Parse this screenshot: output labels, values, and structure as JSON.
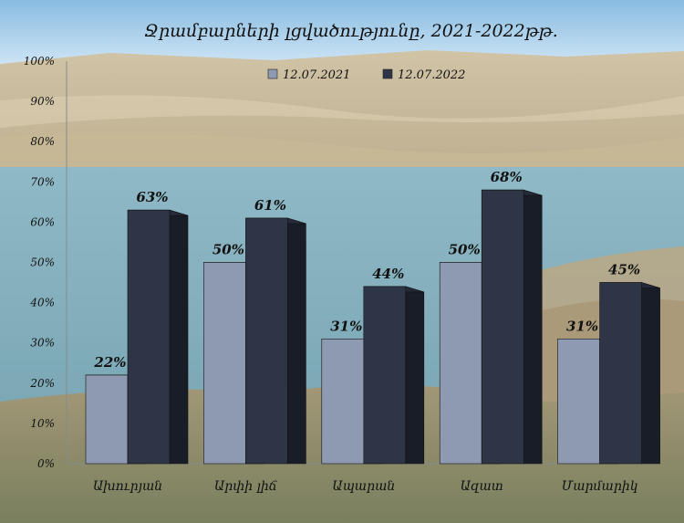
{
  "chart_data": {
    "type": "bar",
    "title": "Ջրամբարների լցվածությունը,  2021-2022թթ.",
    "categories": [
      "Ախուրյան",
      "Արփի լիճ",
      "Ապարան",
      "Ազատ",
      "Մարմարիկ"
    ],
    "series": [
      {
        "name": "12.07.2021",
        "values": [
          22,
          50,
          31,
          50,
          31
        ],
        "labels": [
          "22%",
          "50%",
          "31%",
          "50%",
          "31%"
        ],
        "color": "#8e9ab2"
      },
      {
        "name": "12.07.2022",
        "values": [
          63,
          61,
          44,
          68,
          45
        ],
        "labels": [
          "63%",
          "61%",
          "44%",
          "68%",
          "45%"
        ],
        "color": "#2d3546"
      }
    ],
    "ylim": [
      0,
      100
    ],
    "yticks": [
      "0%",
      "10%",
      "20%",
      "30%",
      "40%",
      "50%",
      "60%",
      "70%",
      "80%",
      "90%",
      "100%"
    ],
    "grid": false,
    "legend_position": "top",
    "style": "3d-bars-over-landscape-photo"
  }
}
